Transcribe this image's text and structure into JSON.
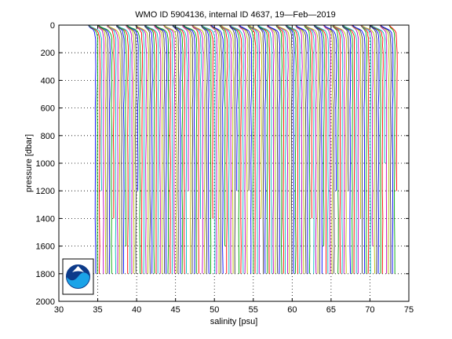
{
  "chart_data": {
    "type": "line",
    "title": "WMO ID 5904136, internal ID 4637, 19—Feb—2019",
    "xlabel": "salinity [psu]",
    "ylabel": "pressure [dbar]",
    "xlim": [
      30,
      75
    ],
    "ylim": [
      0,
      2000
    ],
    "y_reversed": true,
    "x_ticks": [
      30,
      35,
      40,
      45,
      50,
      55,
      60,
      65,
      70,
      75
    ],
    "y_ticks": [
      0,
      200,
      400,
      600,
      800,
      1000,
      1200,
      1400,
      1600,
      1800,
      2000
    ],
    "grid": "dotted",
    "profile_count": 150,
    "profile_offset_psu": 0.26,
    "first_profile_deep_salinity_psu": 34.7,
    "surface_salinity_minimum_psu": 33.6,
    "profile_colors": [
      "#0000ff",
      "#00aa00",
      "#ff0000",
      "#00bfbf",
      "#bf00bf",
      "#bfbf00",
      "#404040"
    ],
    "logo": "noaa-logo"
  }
}
